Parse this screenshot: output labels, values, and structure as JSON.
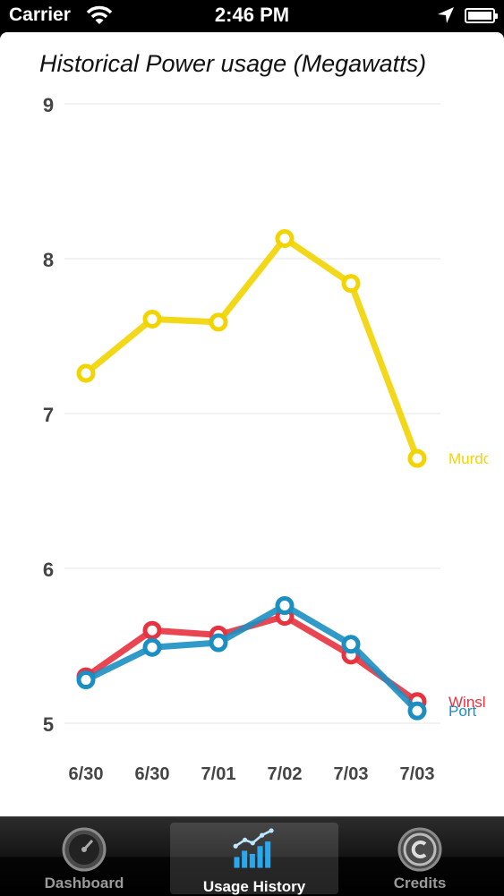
{
  "status": {
    "carrier": "Carrier",
    "time": "2:46 PM"
  },
  "chart_title": "Historical Power usage (Megawatts)",
  "chart_data": {
    "type": "line",
    "title": "Historical Power usage (Megawatts)",
    "xlabel": "",
    "ylabel": "",
    "categories": [
      "6/30",
      "6/30",
      "7/01",
      "7/02",
      "7/03",
      "7/03"
    ],
    "ylim": [
      5,
      9
    ],
    "yticks": [
      9,
      8,
      7,
      6,
      5
    ],
    "grid": true,
    "series": [
      {
        "name": "Murdo",
        "color": "#f2d400",
        "values": [
          7.26,
          7.61,
          7.59,
          8.13,
          7.84,
          6.71
        ]
      },
      {
        "name": "Winsl",
        "color": "#e8323f",
        "values": [
          5.3,
          5.6,
          5.57,
          5.69,
          5.44,
          5.14
        ]
      },
      {
        "name": "Port",
        "color": "#1b8fc2",
        "values": [
          5.28,
          5.49,
          5.52,
          5.76,
          5.51,
          5.08
        ]
      }
    ]
  },
  "tabs": [
    {
      "label": "Dashboard",
      "icon": "gauge-icon",
      "selected": false
    },
    {
      "label": "Usage History",
      "icon": "bar-chart-icon",
      "selected": true
    },
    {
      "label": "Credits",
      "icon": "copyright-icon",
      "selected": false
    }
  ]
}
